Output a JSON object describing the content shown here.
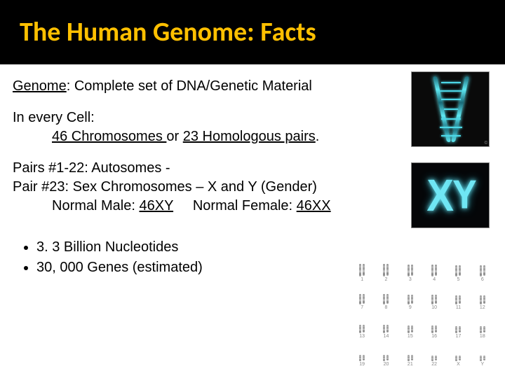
{
  "title": "The Human Genome:  Facts",
  "definition": {
    "term": "Genome",
    "rest": ":  Complete set of DNA/Genetic Material"
  },
  "cell": {
    "intro": "In every Cell:",
    "chrom_count": "46 Chromosomes ",
    "or_word": "or ",
    "pairs": "23 Homologous pairs",
    "period": "."
  },
  "pairs_block": {
    "line1": "Pairs #1-22: Autosomes -",
    "line2": "Pair #23: Sex Chromosomes – X and Y (Gender)",
    "male_label": "Normal Male: ",
    "male_val": "46XY",
    "spacer": "     ",
    "female_label": "Normal Female: ",
    "female_val": "46XX"
  },
  "bullets": [
    "3. 3 Billion Nucleotides",
    "30, 000 Genes (estimated)"
  ],
  "images": {
    "dna_glow_color": "#5fe8f2",
    "dna_bg": "#0a0a0a",
    "xy_glow_color": "#6fe6f4",
    "xy_bg": "#050608"
  },
  "karyotype": {
    "rows": 4,
    "cols": 6,
    "heights": [
      [
        18,
        18,
        17,
        17,
        16,
        16
      ],
      [
        15,
        15,
        14,
        14,
        13,
        13
      ],
      [
        12,
        12,
        11,
        11,
        10,
        10
      ],
      [
        9,
        9,
        9,
        8,
        8,
        8
      ]
    ],
    "labels": [
      [
        "1",
        "2",
        "3",
        "4",
        "5",
        "6"
      ],
      [
        "7",
        "8",
        "9",
        "10",
        "11",
        "12"
      ],
      [
        "13",
        "14",
        "15",
        "16",
        "17",
        "18"
      ],
      [
        "19",
        "20",
        "21",
        "22",
        "X",
        "Y"
      ]
    ]
  }
}
